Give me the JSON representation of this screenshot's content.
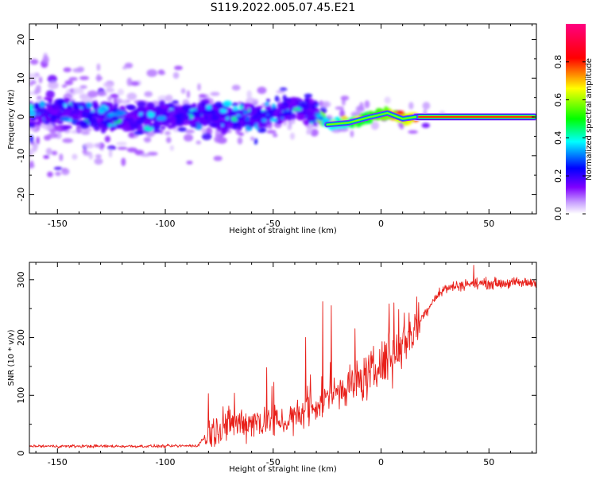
{
  "title": "S119.2022.005.07.45.E21",
  "chart_data": [
    {
      "type": "heatmap",
      "name": "spectrogram",
      "xlabel": "Height of straight line (km)",
      "ylabel": "Frequency (Hz)",
      "xlim": [
        -163,
        72
      ],
      "ylim": [
        -25,
        24
      ],
      "xticks": [
        -150,
        -100,
        -50,
        0,
        50
      ],
      "yticks": [
        -20,
        -10,
        0,
        10,
        20
      ],
      "colorbar": {
        "label": "Normalized spectral amplitude",
        "range": [
          0,
          1
        ],
        "ticks": [
          "0.0",
          "0.2",
          "0.4",
          "0.6",
          "0.8"
        ],
        "colors": [
          "#ffffff",
          "#7f00ff",
          "#0000ff",
          "#00ffff",
          "#00ff00",
          "#ffff00",
          "#ff0000",
          "#ff00ff"
        ]
      },
      "ridge": {
        "description_points": [
          {
            "x": -160,
            "f": 1.0
          },
          {
            "x": -140,
            "f": 0.5
          },
          {
            "x": -120,
            "f": -0.5
          },
          {
            "x": -100,
            "f": 0.0
          },
          {
            "x": -80,
            "f": 0.5
          },
          {
            "x": -60,
            "f": -0.5
          },
          {
            "x": -40,
            "f": 2.5
          },
          {
            "x": -30,
            "f": 1.0
          },
          {
            "x": -25,
            "f": -2.0
          },
          {
            "x": -15,
            "f": -1.5
          },
          {
            "x": -5,
            "f": 0.0
          },
          {
            "x": 3,
            "f": 1.0
          },
          {
            "x": 10,
            "f": -0.5
          },
          {
            "x": 16,
            "f": 0.0
          },
          {
            "x": 70,
            "f": 0.0
          }
        ],
        "steady_line": {
          "x_start": 16,
          "x_end": 71,
          "f": 0.0
        }
      }
    },
    {
      "type": "line",
      "name": "snr",
      "xlabel": "Height of straight line (km)",
      "ylabel": "SNR (10 * v/v)",
      "xlim": [
        -163,
        72
      ],
      "ylim": [
        0,
        330
      ],
      "xticks": [
        -150,
        -100,
        -50,
        0,
        50
      ],
      "yticks": [
        0,
        100,
        200,
        300
      ],
      "color": "#e8201a",
      "trend": [
        {
          "x": -163,
          "y": 12
        },
        {
          "x": -100,
          "y": 12
        },
        {
          "x": -85,
          "y": 13
        },
        {
          "x": -80,
          "y": 35
        },
        {
          "x": -70,
          "y": 50
        },
        {
          "x": -60,
          "y": 55
        },
        {
          "x": -50,
          "y": 55
        },
        {
          "x": -40,
          "y": 60
        },
        {
          "x": -30,
          "y": 80
        },
        {
          "x": -25,
          "y": 95
        },
        {
          "x": -20,
          "y": 110
        },
        {
          "x": -10,
          "y": 125
        },
        {
          "x": 0,
          "y": 150
        },
        {
          "x": 10,
          "y": 190
        },
        {
          "x": 20,
          "y": 240
        },
        {
          "x": 25,
          "y": 270
        },
        {
          "x": 30,
          "y": 285
        },
        {
          "x": 40,
          "y": 293
        },
        {
          "x": 72,
          "y": 295
        }
      ],
      "peaks": [
        {
          "x": -80,
          "y": 103
        },
        {
          "x": -53,
          "y": 148
        },
        {
          "x": -35,
          "y": 200
        },
        {
          "x": -27,
          "y": 262
        },
        {
          "x": -23,
          "y": 255
        },
        {
          "x": -12,
          "y": 215
        },
        {
          "x": 6,
          "y": 260
        },
        {
          "x": 43,
          "y": 325
        }
      ]
    }
  ]
}
